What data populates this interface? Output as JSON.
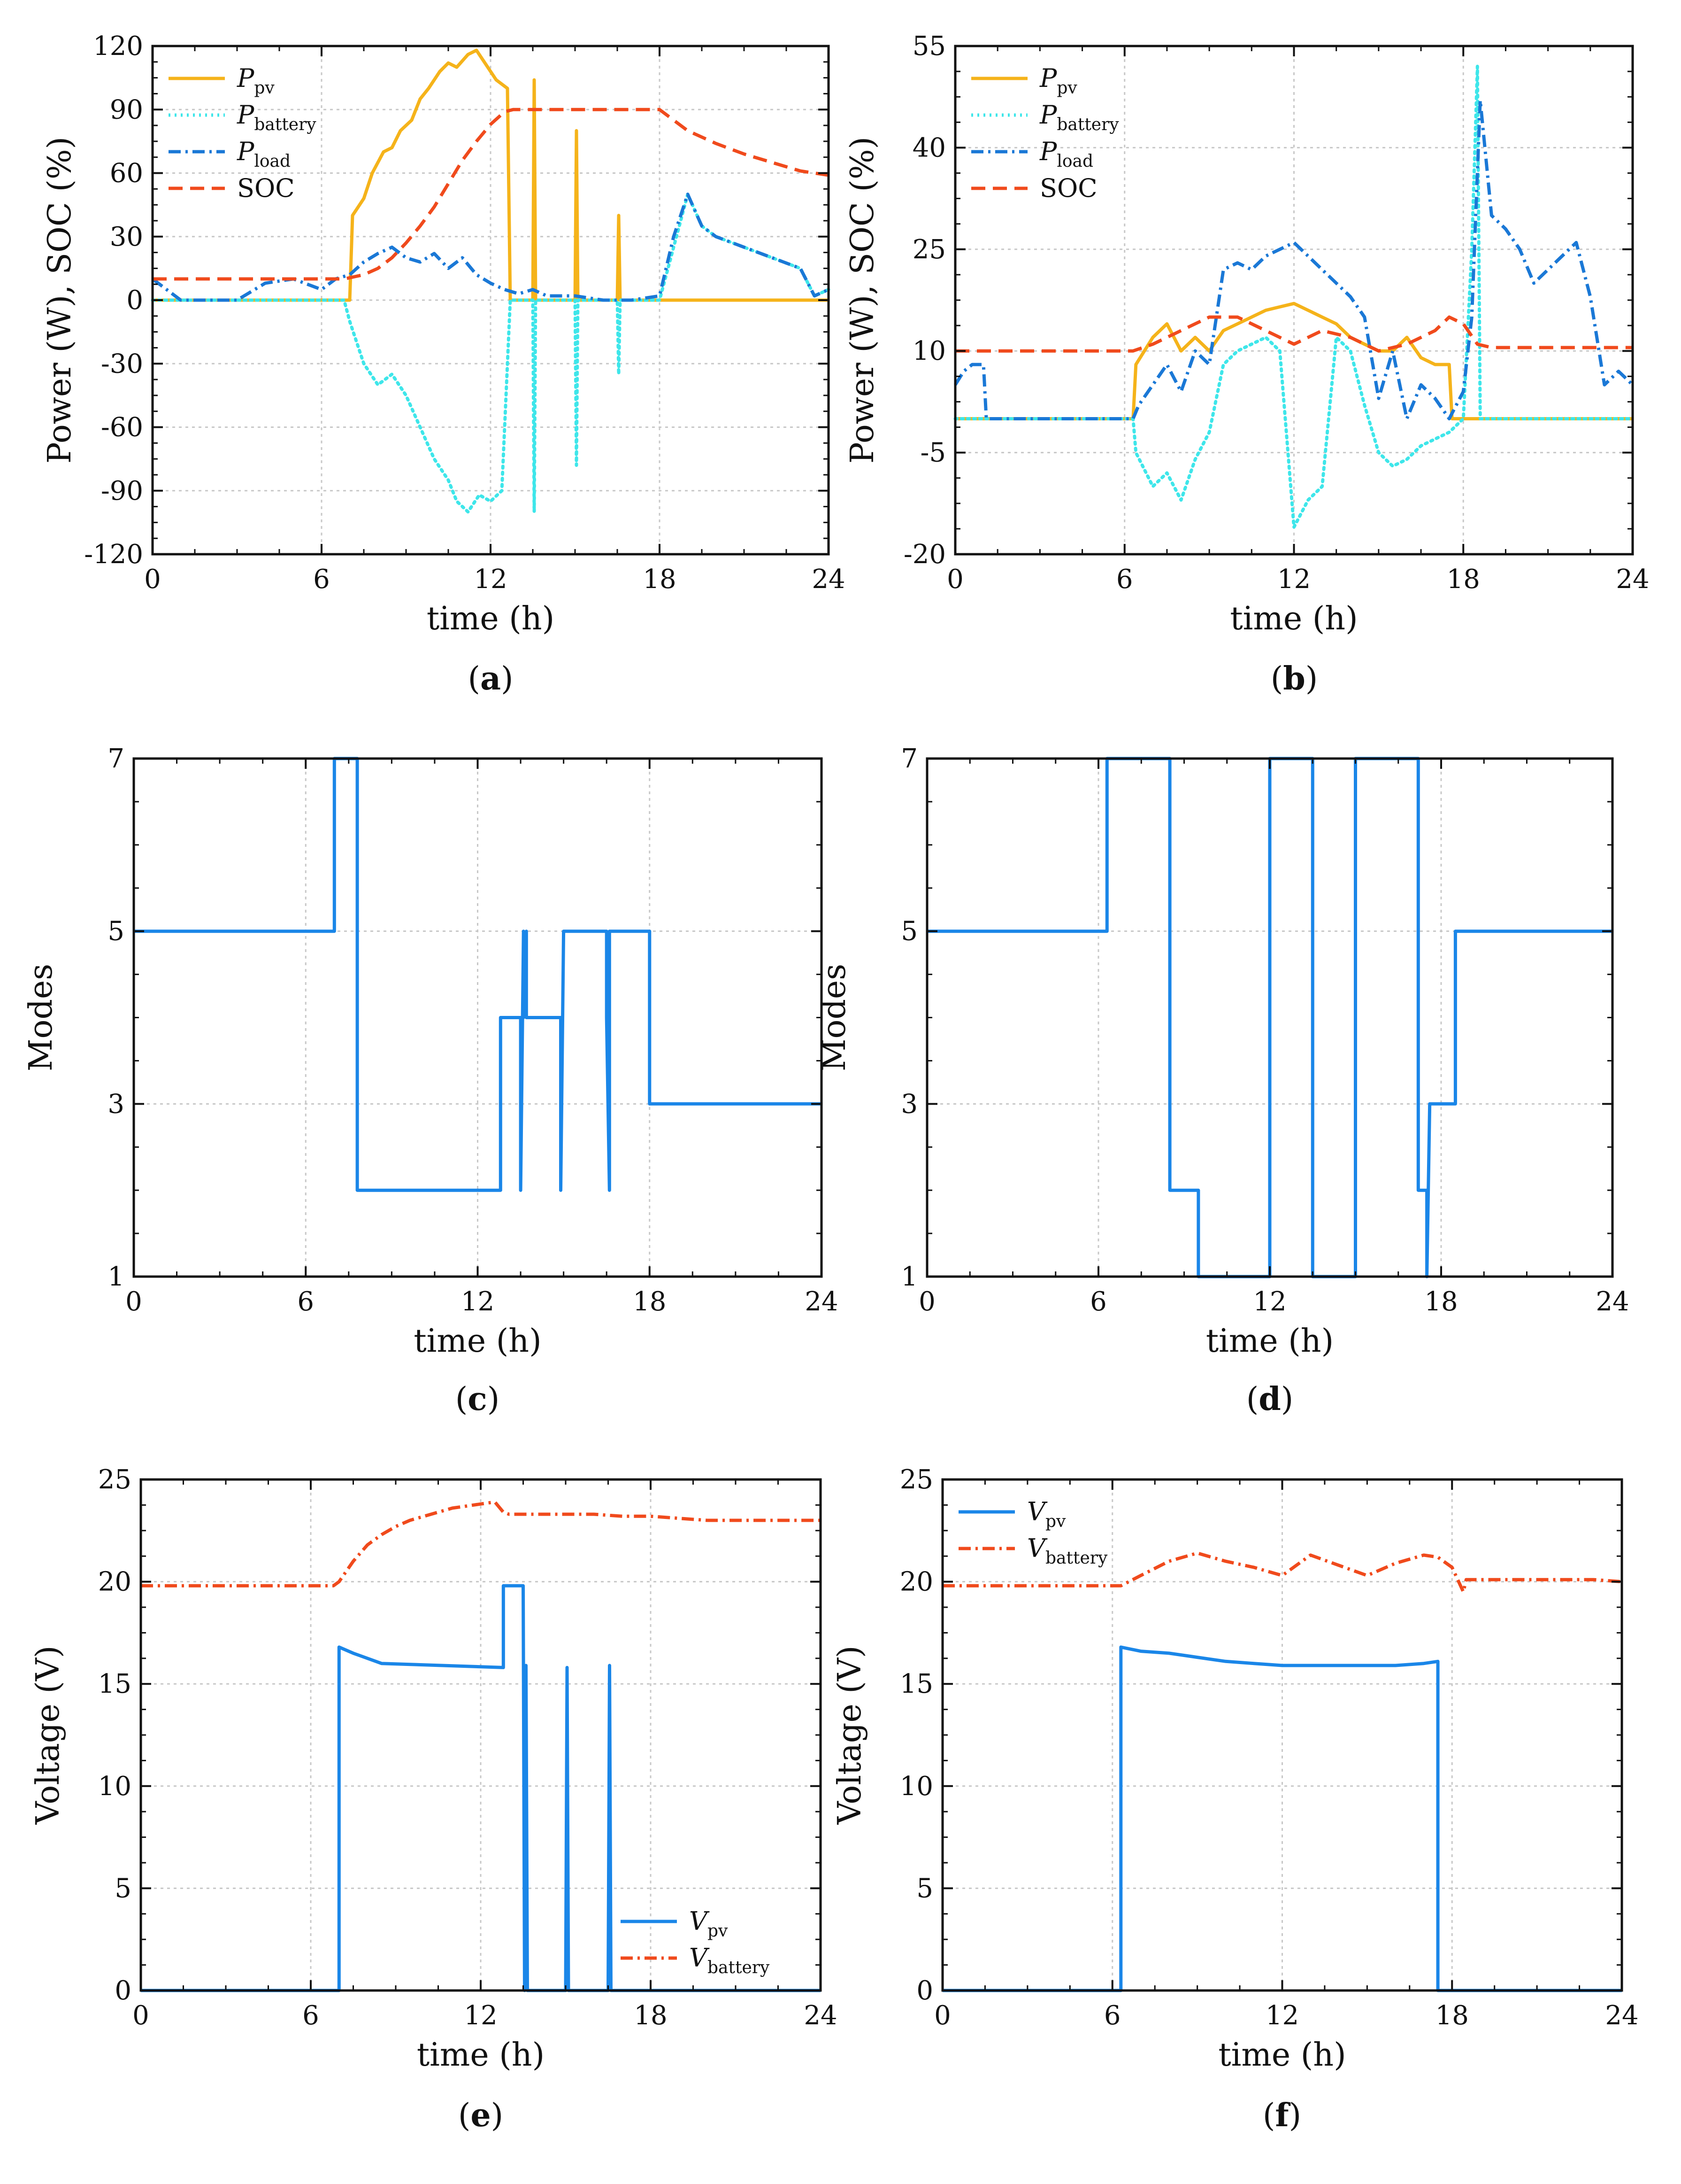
{
  "figure": {
    "panels": [
      {
        "caption_open": "(",
        "caption_letter": "a",
        "caption_close": ")"
      },
      {
        "caption_open": "(",
        "caption_letter": "b",
        "caption_close": ")"
      },
      {
        "caption_open": "(",
        "caption_letter": "c",
        "caption_close": ")"
      },
      {
        "caption_open": "(",
        "caption_letter": "d",
        "caption_close": ")"
      },
      {
        "caption_open": "(",
        "caption_letter": "e",
        "caption_close": ")"
      },
      {
        "caption_open": "(",
        "caption_letter": "f",
        "caption_close": ")"
      }
    ]
  },
  "colors": {
    "pv": "#f5b31a",
    "battery": "#3ee6ea",
    "load": "#1a78d6",
    "soc": "#f04a1c",
    "mode": "#1a86e8",
    "vpv": "#1a86e8",
    "vbattery": "#f04a1c"
  },
  "chart_data": [
    {
      "type": "line",
      "panel": "a",
      "xlabel": "time (h)",
      "ylabel": "Power (W), SOC (%)",
      "xlim": [
        0,
        24
      ],
      "ylim": [
        -120,
        120
      ],
      "xticks": [
        0,
        6,
        12,
        18,
        24
      ],
      "yticks": [
        -120,
        -90,
        -60,
        -30,
        0,
        30,
        60,
        90,
        120
      ],
      "legend_position": "top-left",
      "series": [
        {
          "key": "pv",
          "legend_main": "P",
          "legend_sub": "pv",
          "style": "solid",
          "x": [
            0,
            7.0,
            7.1,
            7.5,
            7.8,
            8.2,
            8.5,
            8.8,
            9.2,
            9.5,
            9.8,
            10.2,
            10.5,
            10.8,
            11.2,
            11.5,
            11.8,
            12.2,
            12.6,
            12.7,
            13.5,
            13.55,
            13.6,
            13.65,
            15.0,
            15.05,
            15.1,
            16.5,
            16.55,
            16.6,
            24
          ],
          "values": [
            0,
            0,
            40,
            48,
            60,
            70,
            72,
            80,
            85,
            95,
            100,
            108,
            112,
            110,
            116,
            118,
            112,
            104,
            100,
            0,
            0,
            104,
            0,
            0,
            0,
            80,
            0,
            0,
            40,
            0,
            0
          ]
        },
        {
          "key": "battery",
          "legend_main": "P",
          "legend_sub": "battery",
          "style": "dotted",
          "x": [
            0,
            6.8,
            7.0,
            7.5,
            8.0,
            8.5,
            9.0,
            9.5,
            10.0,
            10.5,
            10.8,
            11.2,
            11.6,
            12.0,
            12.4,
            12.7,
            13.5,
            13.55,
            13.6,
            14.0,
            15.0,
            15.05,
            15.1,
            16.5,
            16.55,
            16.6,
            17.0,
            18.0,
            18.6,
            19.0,
            19.5,
            20.0,
            21.0,
            22.0,
            23.0,
            23.5,
            24
          ],
          "values": [
            0,
            0,
            -10,
            -30,
            -40,
            -35,
            -45,
            -60,
            -75,
            -85,
            -95,
            -100,
            -92,
            -95,
            -90,
            0,
            0,
            -100,
            0,
            0,
            0,
            -78,
            0,
            0,
            -35,
            0,
            0,
            0,
            30,
            50,
            35,
            30,
            25,
            20,
            15,
            2,
            5
          ]
        },
        {
          "key": "load",
          "legend_main": "P",
          "legend_sub": "load",
          "style": "dashdot",
          "x": [
            0,
            0.5,
            1.0,
            1.5,
            3.0,
            4.0,
            5.0,
            6.0,
            6.5,
            7.0,
            7.5,
            8.0,
            8.5,
            9.0,
            9.5,
            10.0,
            10.5,
            11.0,
            11.5,
            12.0,
            12.5,
            13.0,
            13.5,
            14.0,
            15.0,
            16.0,
            17.0,
            18.0,
            18.5,
            19.0,
            19.5,
            20.0,
            21.0,
            22.0,
            23.0,
            23.5,
            24
          ],
          "values": [
            10,
            5,
            0,
            0,
            0,
            8,
            10,
            5,
            10,
            12,
            18,
            22,
            25,
            20,
            18,
            22,
            15,
            20,
            12,
            8,
            5,
            3,
            5,
            2,
            2,
            0,
            0,
            2,
            30,
            50,
            35,
            30,
            25,
            20,
            15,
            2,
            5
          ]
        },
        {
          "key": "soc",
          "legend_main": "SOC",
          "legend_sub": "",
          "style": "dashed",
          "x": [
            0,
            6.8,
            7.5,
            8.0,
            8.5,
            9.0,
            9.5,
            10.0,
            10.5,
            11.0,
            11.5,
            12.0,
            12.5,
            12.8,
            13.0,
            18.0,
            18.5,
            19.0,
            20.0,
            21.0,
            22.0,
            23.0,
            24
          ],
          "values": [
            10,
            10,
            12,
            15,
            20,
            27,
            35,
            44,
            55,
            66,
            75,
            83,
            89,
            90,
            90,
            90,
            85,
            80,
            74,
            69,
            65,
            61,
            59
          ]
        }
      ]
    },
    {
      "type": "line",
      "panel": "b",
      "xlabel": "time (h)",
      "ylabel": "Power (W), SOC (%)",
      "xlim": [
        0,
        24
      ],
      "ylim": [
        -20,
        55
      ],
      "xticks": [
        0,
        6,
        12,
        18,
        24
      ],
      "yticks": [
        -20,
        -5,
        10,
        25,
        40,
        55
      ],
      "legend_position": "top-left",
      "series": [
        {
          "key": "pv",
          "legend_main": "P",
          "legend_sub": "pv",
          "style": "solid",
          "x": [
            0,
            6.3,
            6.4,
            7.0,
            7.5,
            8.0,
            8.5,
            9.0,
            9.5,
            10.0,
            10.5,
            11.0,
            11.5,
            12.0,
            12.5,
            13.0,
            13.5,
            14.0,
            14.5,
            15.0,
            15.5,
            16.0,
            16.5,
            17.0,
            17.5,
            17.6,
            24
          ],
          "values": [
            0,
            0,
            8,
            12,
            14,
            10,
            12,
            10,
            13,
            14,
            15,
            16,
            16.5,
            17,
            16,
            15,
            14,
            12,
            11,
            10,
            10,
            12,
            9,
            8,
            8,
            0,
            0
          ]
        },
        {
          "key": "battery",
          "legend_main": "P",
          "legend_sub": "battery",
          "style": "dotted",
          "x": [
            0,
            6.3,
            6.4,
            7.0,
            7.5,
            8.0,
            8.5,
            9.0,
            9.5,
            10.0,
            10.5,
            11.0,
            11.5,
            12.0,
            12.5,
            13.0,
            13.5,
            14.0,
            14.5,
            15.0,
            15.5,
            16.0,
            16.5,
            17.0,
            17.5,
            18.0,
            18.3,
            18.5,
            18.6,
            24
          ],
          "values": [
            0,
            0,
            -5,
            -10,
            -8,
            -12,
            -6,
            -2,
            8,
            10,
            11,
            12,
            10,
            -16,
            -12,
            -10,
            12,
            10,
            2,
            -5,
            -7,
            -6,
            -4,
            -3,
            -2,
            0,
            25,
            52,
            0,
            0
          ]
        },
        {
          "key": "load",
          "legend_main": "P",
          "legend_sub": "load",
          "style": "dashdot",
          "x": [
            0,
            0.3,
            0.6,
            1.0,
            1.1,
            6.3,
            6.5,
            7.0,
            7.5,
            8.0,
            8.5,
            9.0,
            9.5,
            10.0,
            10.5,
            11.0,
            11.5,
            12.0,
            12.5,
            13.0,
            13.5,
            14.0,
            14.5,
            15.0,
            15.5,
            16.0,
            16.5,
            17.0,
            17.5,
            18.0,
            18.3,
            18.6,
            19.0,
            19.5,
            20.0,
            20.5,
            21.0,
            21.5,
            22.0,
            22.5,
            23.0,
            23.5,
            24
          ],
          "values": [
            5,
            7,
            8,
            8,
            0,
            0,
            2,
            5,
            8,
            4,
            10,
            8,
            22,
            23,
            22,
            24,
            25,
            26,
            24,
            22,
            20,
            18,
            15,
            3,
            10,
            0,
            5,
            3,
            0,
            4,
            15,
            47,
            30,
            28,
            25,
            20,
            22,
            24,
            26,
            18,
            5,
            7,
            5
          ]
        },
        {
          "key": "soc",
          "legend_main": "SOC",
          "legend_sub": "",
          "style": "dashed",
          "x": [
            0,
            6.3,
            7.0,
            8.0,
            9.0,
            10.0,
            11.0,
            12.0,
            13.0,
            14.0,
            15.0,
            16.0,
            17.0,
            17.5,
            18.0,
            18.5,
            19.0,
            20.0,
            22.0,
            24
          ],
          "values": [
            10,
            10,
            11,
            13,
            15,
            15,
            13,
            11,
            13,
            12,
            10,
            11,
            13,
            15,
            14,
            11,
            10.5,
            10.5,
            10.5,
            10.5
          ]
        }
      ]
    },
    {
      "type": "line",
      "panel": "c",
      "xlabel": "time (h)",
      "ylabel": "Modes",
      "xlim": [
        0,
        24
      ],
      "ylim": [
        1,
        7
      ],
      "xticks": [
        0,
        6,
        12,
        18,
        24
      ],
      "yticks": [
        1,
        3,
        5,
        7
      ],
      "series": [
        {
          "key": "mode",
          "name": "Modes",
          "style": "solid",
          "x": [
            0,
            7.0,
            7.0,
            7.8,
            7.8,
            12.8,
            12.8,
            13.5,
            13.5,
            13.6,
            13.6,
            13.7,
            13.7,
            14.9,
            14.9,
            15.0,
            15.0,
            16.5,
            16.5,
            16.6,
            16.6,
            18.0,
            18.0,
            24
          ],
          "values": [
            5,
            5,
            7,
            7,
            2,
            2,
            4,
            4,
            2,
            5,
            4,
            5,
            4,
            4,
            2,
            5,
            5,
            5,
            4,
            2,
            5,
            5,
            3,
            3
          ]
        }
      ]
    },
    {
      "type": "line",
      "panel": "d",
      "xlabel": "time (h)",
      "ylabel": "Modes",
      "xlim": [
        0,
        24
      ],
      "ylim": [
        1,
        7
      ],
      "xticks": [
        0,
        6,
        12,
        18,
        24
      ],
      "yticks": [
        1,
        3,
        5,
        7
      ],
      "series": [
        {
          "key": "mode",
          "name": "Modes",
          "style": "solid",
          "x": [
            0,
            6.3,
            6.3,
            8.5,
            8.5,
            9.5,
            9.5,
            12.0,
            12.0,
            13.5,
            13.5,
            15.0,
            15.0,
            17.2,
            17.2,
            17.5,
            17.5,
            17.6,
            17.6,
            18.5,
            18.5,
            24
          ],
          "values": [
            5,
            5,
            7,
            7,
            2,
            2,
            1,
            1,
            7,
            7,
            1,
            1,
            7,
            7,
            2,
            2,
            1,
            3,
            3,
            3,
            5,
            5
          ]
        }
      ]
    },
    {
      "type": "line",
      "panel": "e",
      "xlabel": "time (h)",
      "ylabel": "Voltage (V)",
      "xlim": [
        0,
        24
      ],
      "ylim": [
        0,
        25
      ],
      "xticks": [
        0,
        6,
        12,
        18,
        24
      ],
      "yticks": [
        0,
        5,
        10,
        15,
        20,
        25
      ],
      "legend_position": "bottom-right",
      "series": [
        {
          "key": "vpv",
          "legend_main": "V",
          "legend_sub": "pv",
          "style": "solid",
          "x": [
            0,
            7.0,
            7.0,
            7.5,
            8.5,
            12.8,
            12.8,
            13.5,
            13.55,
            13.6,
            13.65,
            13.7,
            15.0,
            15.05,
            15.1,
            16.5,
            16.55,
            16.6,
            24
          ],
          "values": [
            0,
            0,
            16.8,
            16.5,
            16.0,
            15.8,
            19.8,
            19.8,
            0,
            15.9,
            0,
            0,
            0,
            15.8,
            0,
            0,
            15.9,
            0,
            0
          ]
        },
        {
          "key": "vbattery",
          "legend_main": "V",
          "legend_sub": "battery",
          "style": "dashdot",
          "x": [
            0,
            6.8,
            7.0,
            7.5,
            8.0,
            8.5,
            9.0,
            9.5,
            10.0,
            10.5,
            11.0,
            11.5,
            12.0,
            12.5,
            12.8,
            13.0,
            14.0,
            15.0,
            16.0,
            17.0,
            18.0,
            19.0,
            20.0,
            21.0,
            22.0,
            23.0,
            24
          ],
          "values": [
            19.8,
            19.8,
            20.0,
            21.0,
            21.8,
            22.3,
            22.7,
            23.0,
            23.2,
            23.4,
            23.6,
            23.7,
            23.8,
            23.9,
            23.4,
            23.3,
            23.3,
            23.3,
            23.3,
            23.2,
            23.2,
            23.1,
            23.0,
            23.0,
            23.0,
            23.0,
            23.0
          ]
        }
      ]
    },
    {
      "type": "line",
      "panel": "f",
      "xlabel": "time (h)",
      "ylabel": "Voltage (V)",
      "xlim": [
        0,
        24
      ],
      "ylim": [
        0,
        25
      ],
      "xticks": [
        0,
        6,
        12,
        18,
        24
      ],
      "yticks": [
        0,
        5,
        10,
        15,
        20,
        25
      ],
      "legend_position": "top-left",
      "series": [
        {
          "key": "vpv",
          "legend_main": "V",
          "legend_sub": "pv",
          "style": "solid",
          "x": [
            0,
            6.3,
            6.3,
            7.0,
            8.0,
            9.0,
            10.0,
            11.0,
            12.0,
            13.0,
            14.0,
            15.0,
            16.0,
            17.0,
            17.5,
            17.5,
            24
          ],
          "values": [
            0,
            0,
            16.8,
            16.6,
            16.5,
            16.3,
            16.1,
            16.0,
            15.9,
            15.9,
            15.9,
            15.9,
            15.9,
            16.0,
            16.1,
            0,
            0
          ]
        },
        {
          "key": "vbattery",
          "legend_main": "V",
          "legend_sub": "battery",
          "style": "dashdot",
          "x": [
            0,
            6.3,
            7.0,
            8.0,
            9.0,
            10.0,
            11.0,
            12.0,
            13.0,
            14.0,
            15.0,
            16.0,
            17.0,
            17.5,
            18.0,
            18.4,
            18.5,
            18.6,
            19.0,
            20.0,
            21.0,
            22.0,
            23.0,
            24
          ],
          "values": [
            19.8,
            19.8,
            20.3,
            21.0,
            21.4,
            21.0,
            20.7,
            20.3,
            21.3,
            20.8,
            20.3,
            20.9,
            21.3,
            21.2,
            20.7,
            19.5,
            20.1,
            20.1,
            20.1,
            20.1,
            20.1,
            20.1,
            20.1,
            20.0
          ]
        }
      ]
    }
  ]
}
